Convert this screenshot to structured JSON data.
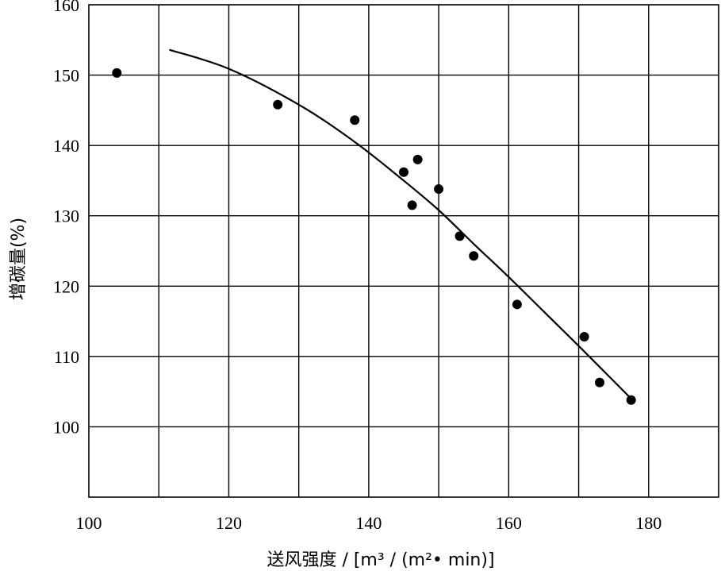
{
  "chart_data": {
    "type": "scatter",
    "xlabel": "送风强度 / [m³ / (m²• min)]",
    "ylabel": "增碳量(%)",
    "xlim": [
      100,
      190
    ],
    "ylim": [
      90,
      160
    ],
    "xticks": [
      100,
      120,
      140,
      160,
      180
    ],
    "yticks": [
      100,
      110,
      120,
      130,
      140,
      150,
      160
    ],
    "grid": true,
    "x_gridlines": [
      110,
      120,
      130,
      140,
      150,
      160,
      170,
      180
    ],
    "y_gridlines": [
      100,
      110,
      120,
      130,
      140,
      150
    ],
    "series": [
      {
        "kind": "scatter",
        "points": [
          [
            104,
            150.3
          ],
          [
            127,
            145.8
          ],
          [
            138,
            143.6
          ],
          [
            145,
            136.2
          ],
          [
            146.2,
            131.5
          ],
          [
            147,
            138.0
          ],
          [
            150,
            133.8
          ],
          [
            153,
            127.1
          ],
          [
            155,
            124.3
          ],
          [
            161.2,
            117.4
          ],
          [
            170.8,
            112.8
          ],
          [
            173,
            106.3
          ],
          [
            177.5,
            103.8
          ]
        ]
      },
      {
        "kind": "fit-curve",
        "points": [
          [
            111.5,
            153.6
          ],
          [
            120,
            150.9
          ],
          [
            130,
            145.8
          ],
          [
            138,
            140.5
          ],
          [
            145,
            135.0
          ],
          [
            150,
            130.8
          ],
          [
            155,
            126.0
          ],
          [
            160,
            121.3
          ],
          [
            165,
            116.4
          ],
          [
            170,
            111.5
          ],
          [
            177.5,
            104.0
          ]
        ]
      }
    ]
  }
}
